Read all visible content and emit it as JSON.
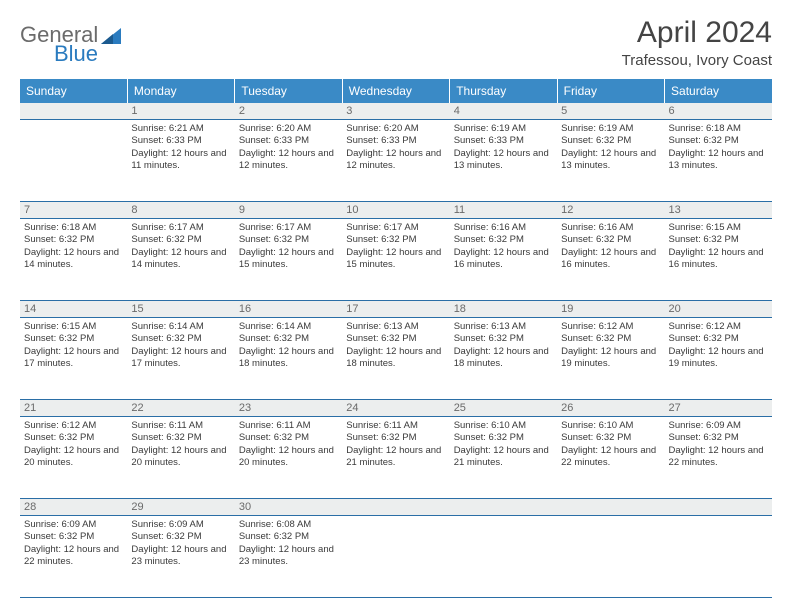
{
  "header": {
    "logo_general": "General",
    "logo_blue": "Blue",
    "month_title": "April 2024",
    "location": "Trafessou, Ivory Coast"
  },
  "colors": {
    "header_bg": "#3a8ac6",
    "header_text": "#ffffff",
    "daynum_bg": "#eceeee",
    "rule": "#2a6ea6",
    "logo_gray": "#6b6b6b",
    "logo_blue": "#2a7bbf"
  },
  "weekdays": [
    "Sunday",
    "Monday",
    "Tuesday",
    "Wednesday",
    "Thursday",
    "Friday",
    "Saturday"
  ],
  "weeks": [
    {
      "nums": [
        "",
        "1",
        "2",
        "3",
        "4",
        "5",
        "6"
      ],
      "cells": [
        {
          "sunrise": "",
          "sunset": "",
          "daylight": ""
        },
        {
          "sunrise": "Sunrise: 6:21 AM",
          "sunset": "Sunset: 6:33 PM",
          "daylight": "Daylight: 12 hours and 11 minutes."
        },
        {
          "sunrise": "Sunrise: 6:20 AM",
          "sunset": "Sunset: 6:33 PM",
          "daylight": "Daylight: 12 hours and 12 minutes."
        },
        {
          "sunrise": "Sunrise: 6:20 AM",
          "sunset": "Sunset: 6:33 PM",
          "daylight": "Daylight: 12 hours and 12 minutes."
        },
        {
          "sunrise": "Sunrise: 6:19 AM",
          "sunset": "Sunset: 6:33 PM",
          "daylight": "Daylight: 12 hours and 13 minutes."
        },
        {
          "sunrise": "Sunrise: 6:19 AM",
          "sunset": "Sunset: 6:32 PM",
          "daylight": "Daylight: 12 hours and 13 minutes."
        },
        {
          "sunrise": "Sunrise: 6:18 AM",
          "sunset": "Sunset: 6:32 PM",
          "daylight": "Daylight: 12 hours and 13 minutes."
        }
      ]
    },
    {
      "nums": [
        "7",
        "8",
        "9",
        "10",
        "11",
        "12",
        "13"
      ],
      "cells": [
        {
          "sunrise": "Sunrise: 6:18 AM",
          "sunset": "Sunset: 6:32 PM",
          "daylight": "Daylight: 12 hours and 14 minutes."
        },
        {
          "sunrise": "Sunrise: 6:17 AM",
          "sunset": "Sunset: 6:32 PM",
          "daylight": "Daylight: 12 hours and 14 minutes."
        },
        {
          "sunrise": "Sunrise: 6:17 AM",
          "sunset": "Sunset: 6:32 PM",
          "daylight": "Daylight: 12 hours and 15 minutes."
        },
        {
          "sunrise": "Sunrise: 6:17 AM",
          "sunset": "Sunset: 6:32 PM",
          "daylight": "Daylight: 12 hours and 15 minutes."
        },
        {
          "sunrise": "Sunrise: 6:16 AM",
          "sunset": "Sunset: 6:32 PM",
          "daylight": "Daylight: 12 hours and 16 minutes."
        },
        {
          "sunrise": "Sunrise: 6:16 AM",
          "sunset": "Sunset: 6:32 PM",
          "daylight": "Daylight: 12 hours and 16 minutes."
        },
        {
          "sunrise": "Sunrise: 6:15 AM",
          "sunset": "Sunset: 6:32 PM",
          "daylight": "Daylight: 12 hours and 16 minutes."
        }
      ]
    },
    {
      "nums": [
        "14",
        "15",
        "16",
        "17",
        "18",
        "19",
        "20"
      ],
      "cells": [
        {
          "sunrise": "Sunrise: 6:15 AM",
          "sunset": "Sunset: 6:32 PM",
          "daylight": "Daylight: 12 hours and 17 minutes."
        },
        {
          "sunrise": "Sunrise: 6:14 AM",
          "sunset": "Sunset: 6:32 PM",
          "daylight": "Daylight: 12 hours and 17 minutes."
        },
        {
          "sunrise": "Sunrise: 6:14 AM",
          "sunset": "Sunset: 6:32 PM",
          "daylight": "Daylight: 12 hours and 18 minutes."
        },
        {
          "sunrise": "Sunrise: 6:13 AM",
          "sunset": "Sunset: 6:32 PM",
          "daylight": "Daylight: 12 hours and 18 minutes."
        },
        {
          "sunrise": "Sunrise: 6:13 AM",
          "sunset": "Sunset: 6:32 PM",
          "daylight": "Daylight: 12 hours and 18 minutes."
        },
        {
          "sunrise": "Sunrise: 6:12 AM",
          "sunset": "Sunset: 6:32 PM",
          "daylight": "Daylight: 12 hours and 19 minutes."
        },
        {
          "sunrise": "Sunrise: 6:12 AM",
          "sunset": "Sunset: 6:32 PM",
          "daylight": "Daylight: 12 hours and 19 minutes."
        }
      ]
    },
    {
      "nums": [
        "21",
        "22",
        "23",
        "24",
        "25",
        "26",
        "27"
      ],
      "cells": [
        {
          "sunrise": "Sunrise: 6:12 AM",
          "sunset": "Sunset: 6:32 PM",
          "daylight": "Daylight: 12 hours and 20 minutes."
        },
        {
          "sunrise": "Sunrise: 6:11 AM",
          "sunset": "Sunset: 6:32 PM",
          "daylight": "Daylight: 12 hours and 20 minutes."
        },
        {
          "sunrise": "Sunrise: 6:11 AM",
          "sunset": "Sunset: 6:32 PM",
          "daylight": "Daylight: 12 hours and 20 minutes."
        },
        {
          "sunrise": "Sunrise: 6:11 AM",
          "sunset": "Sunset: 6:32 PM",
          "daylight": "Daylight: 12 hours and 21 minutes."
        },
        {
          "sunrise": "Sunrise: 6:10 AM",
          "sunset": "Sunset: 6:32 PM",
          "daylight": "Daylight: 12 hours and 21 minutes."
        },
        {
          "sunrise": "Sunrise: 6:10 AM",
          "sunset": "Sunset: 6:32 PM",
          "daylight": "Daylight: 12 hours and 22 minutes."
        },
        {
          "sunrise": "Sunrise: 6:09 AM",
          "sunset": "Sunset: 6:32 PM",
          "daylight": "Daylight: 12 hours and 22 minutes."
        }
      ]
    },
    {
      "nums": [
        "28",
        "29",
        "30",
        "",
        "",
        "",
        ""
      ],
      "cells": [
        {
          "sunrise": "Sunrise: 6:09 AM",
          "sunset": "Sunset: 6:32 PM",
          "daylight": "Daylight: 12 hours and 22 minutes."
        },
        {
          "sunrise": "Sunrise: 6:09 AM",
          "sunset": "Sunset: 6:32 PM",
          "daylight": "Daylight: 12 hours and 23 minutes."
        },
        {
          "sunrise": "Sunrise: 6:08 AM",
          "sunset": "Sunset: 6:32 PM",
          "daylight": "Daylight: 12 hours and 23 minutes."
        },
        {
          "sunrise": "",
          "sunset": "",
          "daylight": ""
        },
        {
          "sunrise": "",
          "sunset": "",
          "daylight": ""
        },
        {
          "sunrise": "",
          "sunset": "",
          "daylight": ""
        },
        {
          "sunrise": "",
          "sunset": "",
          "daylight": ""
        }
      ]
    }
  ]
}
